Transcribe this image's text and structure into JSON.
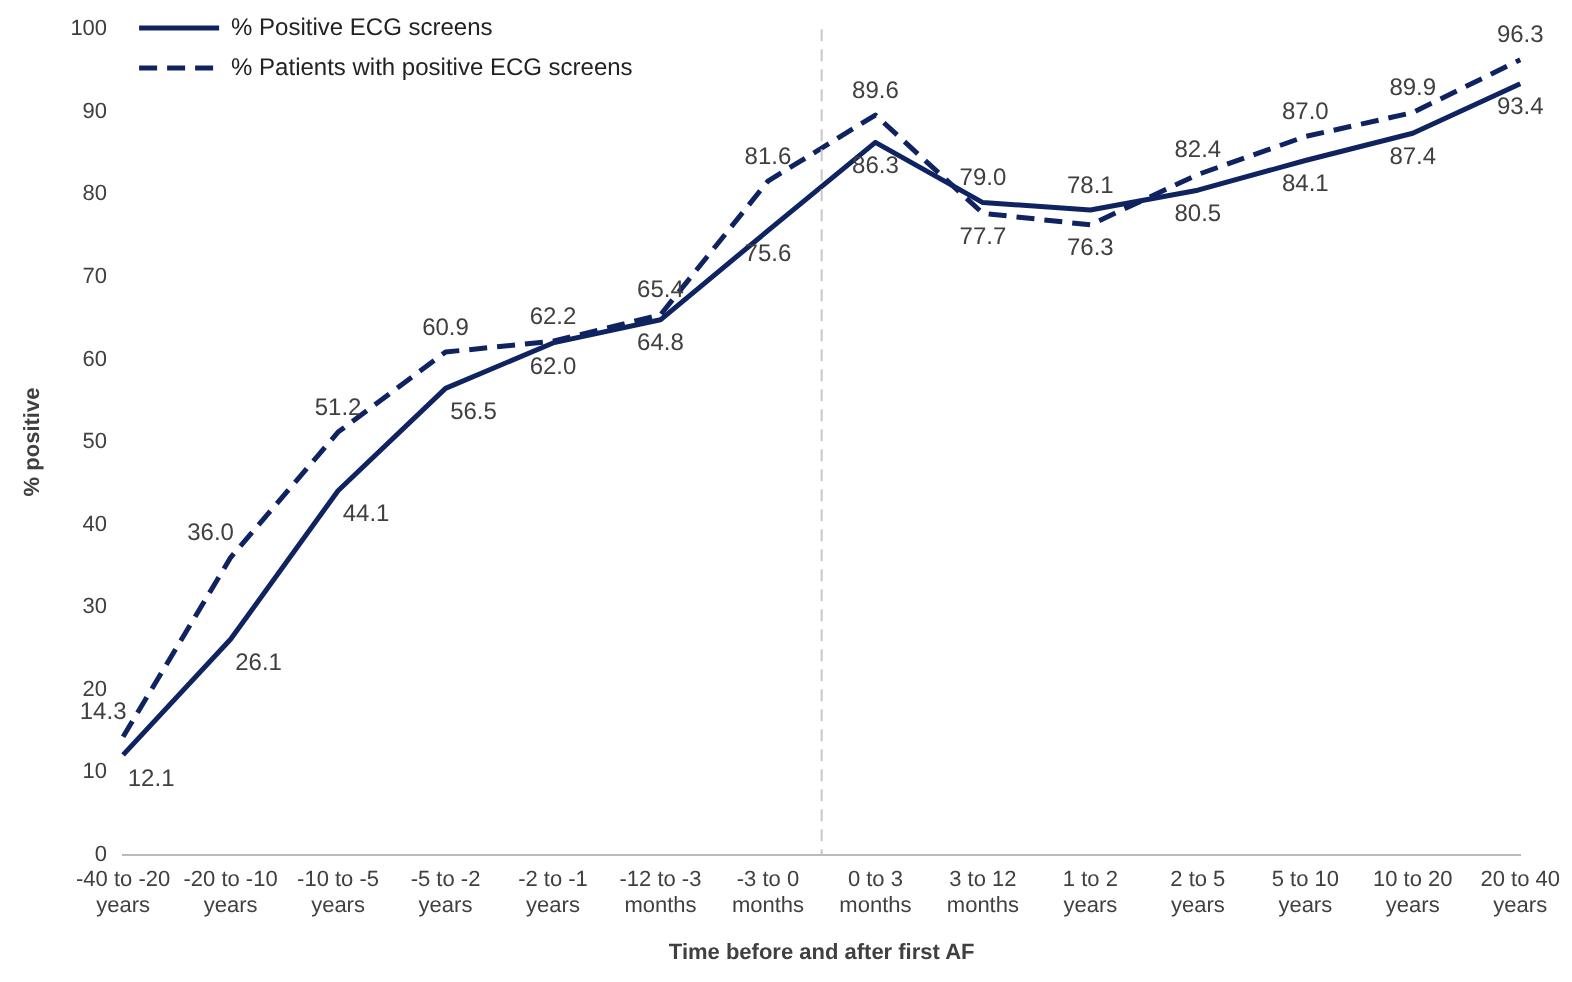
{
  "chart_data": {
    "type": "line",
    "xlabel": "Time before and after first AF",
    "ylabel": "% positive",
    "categories": [
      "-40 to -20 years",
      "-20 to -10 years",
      "-10 to -5 years",
      "-5 to -2 years",
      "-2 to -1 years",
      "-12 to -3 months",
      "-3 to 0 months",
      "0 to 3 months",
      "3 to 12 months",
      "1 to 2 years",
      "2 to 5 years",
      "5 to 10 years",
      "10 to 20 years",
      "20 to 40 years"
    ],
    "series": [
      {
        "name": "% Positive ECG screens",
        "color": "#0f2361",
        "line_style": "solid",
        "values": [
          12.1,
          26.1,
          44.1,
          56.5,
          62.0,
          64.8,
          75.6,
          86.3,
          79.0,
          78.1,
          80.5,
          84.1,
          87.4,
          93.4
        ],
        "value_labels": [
          "12.1",
          "26.1",
          "44.1",
          "56.5",
          "62.0",
          "64.8",
          "75.6",
          "86.3",
          "79.0",
          "78.1",
          "80.5",
          "84.1",
          "87.4",
          "93.4"
        ]
      },
      {
        "name": "% Patients with positive ECG screens",
        "color": "#0f2361",
        "line_style": "dashed",
        "values": [
          14.3,
          36.0,
          51.2,
          60.9,
          62.2,
          65.4,
          81.6,
          89.6,
          77.7,
          76.3,
          82.4,
          87.0,
          89.9,
          96.3
        ],
        "value_labels": [
          "14.3",
          "36.0",
          "51.2",
          "60.9",
          "62.2",
          "65.4",
          "81.6",
          "89.6",
          "77.7",
          "76.3",
          "82.4",
          "87.0",
          "89.9",
          "96.3"
        ]
      }
    ],
    "ylim": [
      0,
      100
    ],
    "yticks": [
      0,
      10,
      20,
      30,
      40,
      50,
      60,
      70,
      80,
      90,
      100
    ],
    "grid": false,
    "legend": "top left",
    "marker": "none"
  }
}
